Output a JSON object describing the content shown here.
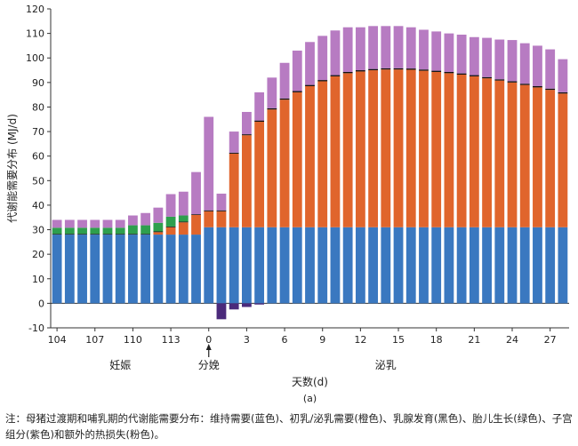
{
  "chart_data": {
    "type": "bar",
    "stacked": true,
    "ylabel": "代谢能需要分布 (MJ/d)",
    "xlabel": "天数(d)",
    "panel_label": "(a)",
    "ylim": [
      -10,
      120
    ],
    "yticks": [
      -10,
      0,
      10,
      20,
      30,
      40,
      50,
      60,
      70,
      80,
      90,
      100,
      110,
      120
    ],
    "grid": false,
    "x_tick_labels": [
      "104",
      "107",
      "110",
      "113",
      "0",
      "3",
      "6",
      "9",
      "12",
      "15",
      "18",
      "21",
      "24",
      "27"
    ],
    "x_tick_indices": [
      0,
      3,
      6,
      9,
      12,
      15,
      18,
      21,
      24,
      27,
      30,
      33,
      36,
      39
    ],
    "group_labels": [
      {
        "text": "妊娠",
        "center_index": 5
      },
      {
        "text": "分娩",
        "center_index": 12
      },
      {
        "text": "泌乳",
        "center_index": 26
      }
    ],
    "farrowing_arrow_index": 12,
    "categories": [
      "104",
      "105",
      "106",
      "107",
      "108",
      "109",
      "110",
      "111",
      "112",
      "113",
      "114",
      "115",
      "0",
      "1",
      "2",
      "3",
      "4",
      "5",
      "6",
      "7",
      "8",
      "9",
      "10",
      "11",
      "12",
      "13",
      "14",
      "15",
      "16",
      "17",
      "18",
      "19",
      "20",
      "21",
      "22",
      "23",
      "24",
      "25",
      "26",
      "27",
      "28"
    ],
    "series": [
      {
        "key": "maintenance",
        "color": "#3A78C0",
        "values": [
          28,
          28,
          28,
          28,
          28,
          28,
          28,
          28,
          28,
          28,
          28,
          28,
          31,
          31,
          31,
          31,
          31,
          31,
          31,
          31,
          31,
          31,
          31,
          31,
          31,
          31,
          31,
          31,
          31,
          31,
          31,
          31,
          31,
          31,
          31,
          31,
          31,
          31,
          31,
          31,
          31
        ]
      },
      {
        "key": "lactation",
        "color": "#E0652C",
        "values": [
          0,
          0,
          0,
          0,
          0,
          0,
          0,
          0,
          1,
          3,
          5,
          8,
          6.5,
          6.5,
          30,
          37.5,
          43,
          48,
          52,
          55,
          57.5,
          59.5,
          61.5,
          62.8,
          63.5,
          64,
          64.3,
          64.3,
          64.2,
          63.8,
          63.3,
          62.8,
          62.2,
          61.5,
          60.7,
          59.8,
          59,
          58,
          57,
          56,
          54.5
        ]
      },
      {
        "key": "mammary",
        "color": "#111111",
        "values": [
          0.3,
          0.3,
          0.3,
          0.3,
          0.3,
          0.3,
          0.3,
          0.3,
          0.3,
          0.3,
          0.3,
          0.3,
          0.4,
          0.4,
          0.4,
          0.4,
          0.5,
          0.5,
          0.5,
          0.5,
          0.5,
          0.5,
          0.5,
          0.5,
          0.5,
          0.5,
          0.5,
          0.5,
          0.5,
          0.5,
          0.5,
          0.5,
          0.5,
          0.5,
          0.5,
          0.5,
          0.5,
          0.5,
          0.5,
          0.5,
          0.5
        ]
      },
      {
        "key": "fetal",
        "color": "#2E9F4D",
        "values": [
          2.5,
          2.5,
          2.5,
          2.5,
          2.5,
          2.5,
          3.5,
          3.5,
          3.5,
          4,
          2.5,
          0,
          0,
          0,
          0,
          0,
          0,
          0,
          0,
          0,
          0,
          0,
          0,
          0,
          0,
          0,
          0,
          0,
          0,
          0,
          0,
          0,
          0,
          0,
          0,
          0,
          0,
          0,
          0,
          0,
          0
        ]
      },
      {
        "key": "uterine",
        "color": "#4B2A7B",
        "values": [
          0,
          0,
          0,
          0,
          0,
          0,
          0,
          0,
          0,
          0,
          0,
          0,
          0,
          -6.5,
          -2.5,
          -1.5,
          -0.5,
          0,
          0,
          0,
          0,
          0,
          0,
          0,
          0,
          0,
          0,
          0,
          0,
          0,
          0,
          0,
          0,
          0,
          0,
          0,
          0,
          0,
          0,
          0,
          0
        ]
      },
      {
        "key": "heat_loss",
        "color": "#B77BC2",
        "values": [
          3.2,
          3.2,
          3.2,
          3.2,
          3.2,
          3.2,
          4,
          5,
          6.2,
          9.2,
          9.7,
          17.2,
          38.1,
          6.8,
          8.6,
          9.1,
          11.5,
          12.5,
          14.5,
          16.5,
          17.5,
          18,
          18.2,
          18.2,
          17.5,
          17.5,
          17.2,
          17.2,
          16.8,
          16.2,
          16,
          15.7,
          15.8,
          15.5,
          16,
          16.2,
          16.8,
          16.5,
          16.5,
          16,
          13.5
        ]
      }
    ]
  },
  "note": "注：母猪过渡期和哺乳期的代谢能需要分布：维持需要(蓝色)、初乳/泌乳需要(橙色)、乳腺发育(黑色)、胎儿生长(绿色)、子宫组分(紫色)和额外的热损失(粉色)。"
}
